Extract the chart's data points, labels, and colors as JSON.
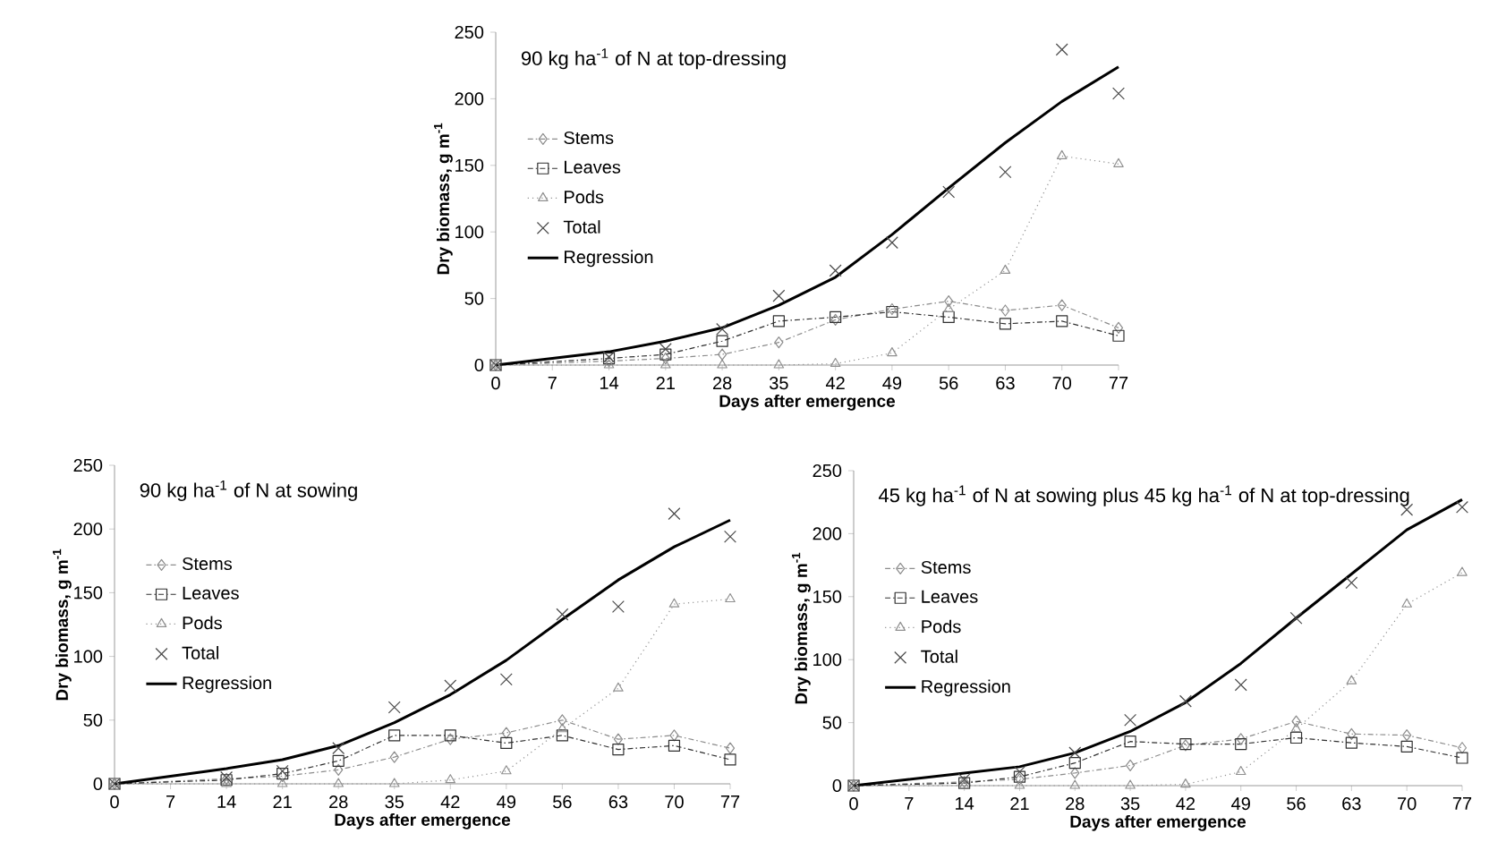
{
  "chart_data": [
    {
      "type": "line",
      "title": "90 kg ha$^{-1}$ of N at top-dressing",
      "xlabel": "Days after emergence",
      "ylabel": "Dry biomass,  g m$^{-1}$",
      "x": [
        0,
        14,
        21,
        28,
        35,
        42,
        49,
        56,
        63,
        70,
        77
      ],
      "xlim": [
        0,
        77
      ],
      "ylim": [
        0,
        250
      ],
      "xticks": [
        0,
        7,
        14,
        21,
        28,
        35,
        42,
        49,
        56,
        63,
        70,
        77
      ],
      "yticks": [
        0,
        50,
        100,
        150,
        200,
        250
      ],
      "legend": "left",
      "series": [
        {
          "name": "Stems",
          "color": "#8c8c8c",
          "marker": "diamond",
          "line_style": "dashed",
          "values": [
            0,
            3,
            5,
            8,
            17,
            34,
            42,
            48,
            41,
            45,
            28
          ]
        },
        {
          "name": "Leaves",
          "color": "#303030",
          "marker": "square",
          "line_style": "dashed",
          "values": [
            0,
            5,
            8,
            18,
            33,
            36,
            40,
            36,
            31,
            33,
            22
          ]
        },
        {
          "name": "Pods",
          "color": "#909090",
          "marker": "triangle",
          "line_style": "dotted",
          "values": [
            0,
            0,
            0,
            0,
            0,
            1,
            9,
            42,
            71,
            157,
            151
          ]
        },
        {
          "name": "Total",
          "type": "scatter",
          "color": "#4a4a4a",
          "marker": "cross",
          "values": [
            0,
            6,
            12,
            27,
            52,
            71,
            92,
            130,
            145,
            237,
            204
          ]
        },
        {
          "name": "Regression",
          "type": "line",
          "color": "#000000",
          "marker": "none",
          "line_style": "solid",
          "x": [
            0,
            7,
            14,
            21,
            28,
            35,
            42,
            49,
            56,
            63,
            70,
            77
          ],
          "values": [
            0,
            5,
            10,
            18,
            28,
            45,
            66,
            98,
            133,
            167,
            198,
            224
          ]
        }
      ]
    },
    {
      "type": "line",
      "title": "90 kg ha$^{-1}$ of N at sowing",
      "xlabel": "Days after emergence",
      "ylabel": "Dry biomass,  g m$^{-1}$",
      "x": [
        0,
        14,
        21,
        28,
        35,
        42,
        49,
        56,
        63,
        70,
        77
      ],
      "xlim": [
        0,
        77
      ],
      "ylim": [
        0,
        250
      ],
      "xticks": [
        0,
        7,
        14,
        21,
        28,
        35,
        42,
        49,
        56,
        63,
        70,
        77
      ],
      "yticks": [
        0,
        50,
        100,
        150,
        200,
        250
      ],
      "legend": "left",
      "series": [
        {
          "name": "Stems",
          "color": "#8c8c8c",
          "marker": "diamond",
          "line_style": "dashed",
          "values": [
            0,
            4,
            6,
            11,
            21,
            35,
            40,
            50,
            35,
            38,
            28
          ]
        },
        {
          "name": "Leaves",
          "color": "#303030",
          "marker": "square",
          "line_style": "dashed",
          "values": [
            0,
            3,
            8,
            18,
            38,
            38,
            32,
            38,
            27,
            30,
            19
          ]
        },
        {
          "name": "Pods",
          "color": "#909090",
          "marker": "triangle",
          "line_style": "dotted",
          "values": [
            0,
            0,
            0,
            0,
            0,
            3,
            10,
            43,
            75,
            141,
            145
          ]
        },
        {
          "name": "Total",
          "type": "scatter",
          "color": "#4a4a4a",
          "marker": "cross",
          "values": [
            0,
            5,
            10,
            28,
            60,
            77,
            82,
            133,
            139,
            212,
            194
          ]
        },
        {
          "name": "Regression",
          "type": "line",
          "color": "#000000",
          "marker": "none",
          "line_style": "solid",
          "x": [
            0,
            7,
            14,
            21,
            28,
            35,
            42,
            49,
            56,
            63,
            70,
            77
          ],
          "values": [
            0,
            6,
            12,
            19,
            30,
            48,
            70,
            97,
            129,
            160,
            186,
            207
          ]
        }
      ]
    },
    {
      "type": "line",
      "title": "45 kg ha$^{-1}$ of N at sowing plus 45 kg ha$^{-1}$ of N at top-dressing",
      "xlabel": "Days after emergence",
      "ylabel": "Dry biomass,  g m$^{-1}$",
      "x": [
        0,
        14,
        21,
        28,
        35,
        42,
        49,
        56,
        63,
        70,
        77
      ],
      "xlim": [
        0,
        77
      ],
      "ylim": [
        0,
        250
      ],
      "xticks": [
        0,
        7,
        14,
        21,
        28,
        35,
        42,
        49,
        56,
        63,
        70,
        77
      ],
      "yticks": [
        0,
        50,
        100,
        150,
        200,
        250
      ],
      "legend": "left",
      "series": [
        {
          "name": "Stems",
          "color": "#8c8c8c",
          "marker": "diamond",
          "line_style": "dashed",
          "values": [
            0,
            3,
            5,
            10,
            16,
            32,
            37,
            51,
            41,
            40,
            30
          ]
        },
        {
          "name": "Leaves",
          "color": "#303030",
          "marker": "square",
          "line_style": "dashed",
          "values": [
            0,
            2,
            7,
            18,
            35,
            33,
            33,
            38,
            34,
            31,
            22
          ]
        },
        {
          "name": "Pods",
          "color": "#909090",
          "marker": "triangle",
          "line_style": "dotted",
          "values": [
            0,
            0,
            0,
            0,
            0,
            1,
            11,
            45,
            83,
            144,
            169
          ]
        },
        {
          "name": "Total",
          "type": "scatter",
          "color": "#4a4a4a",
          "marker": "cross",
          "values": [
            0,
            5,
            11,
            26,
            52,
            67,
            80,
            133,
            161,
            219,
            221
          ]
        },
        {
          "name": "Regression",
          "type": "line",
          "color": "#000000",
          "marker": "none",
          "line_style": "solid",
          "x": [
            0,
            7,
            14,
            21,
            28,
            35,
            42,
            49,
            56,
            63,
            70,
            77
          ],
          "values": [
            0,
            5,
            10,
            15,
            26,
            43,
            66,
            97,
            133,
            168,
            203,
            227
          ]
        }
      ]
    }
  ]
}
